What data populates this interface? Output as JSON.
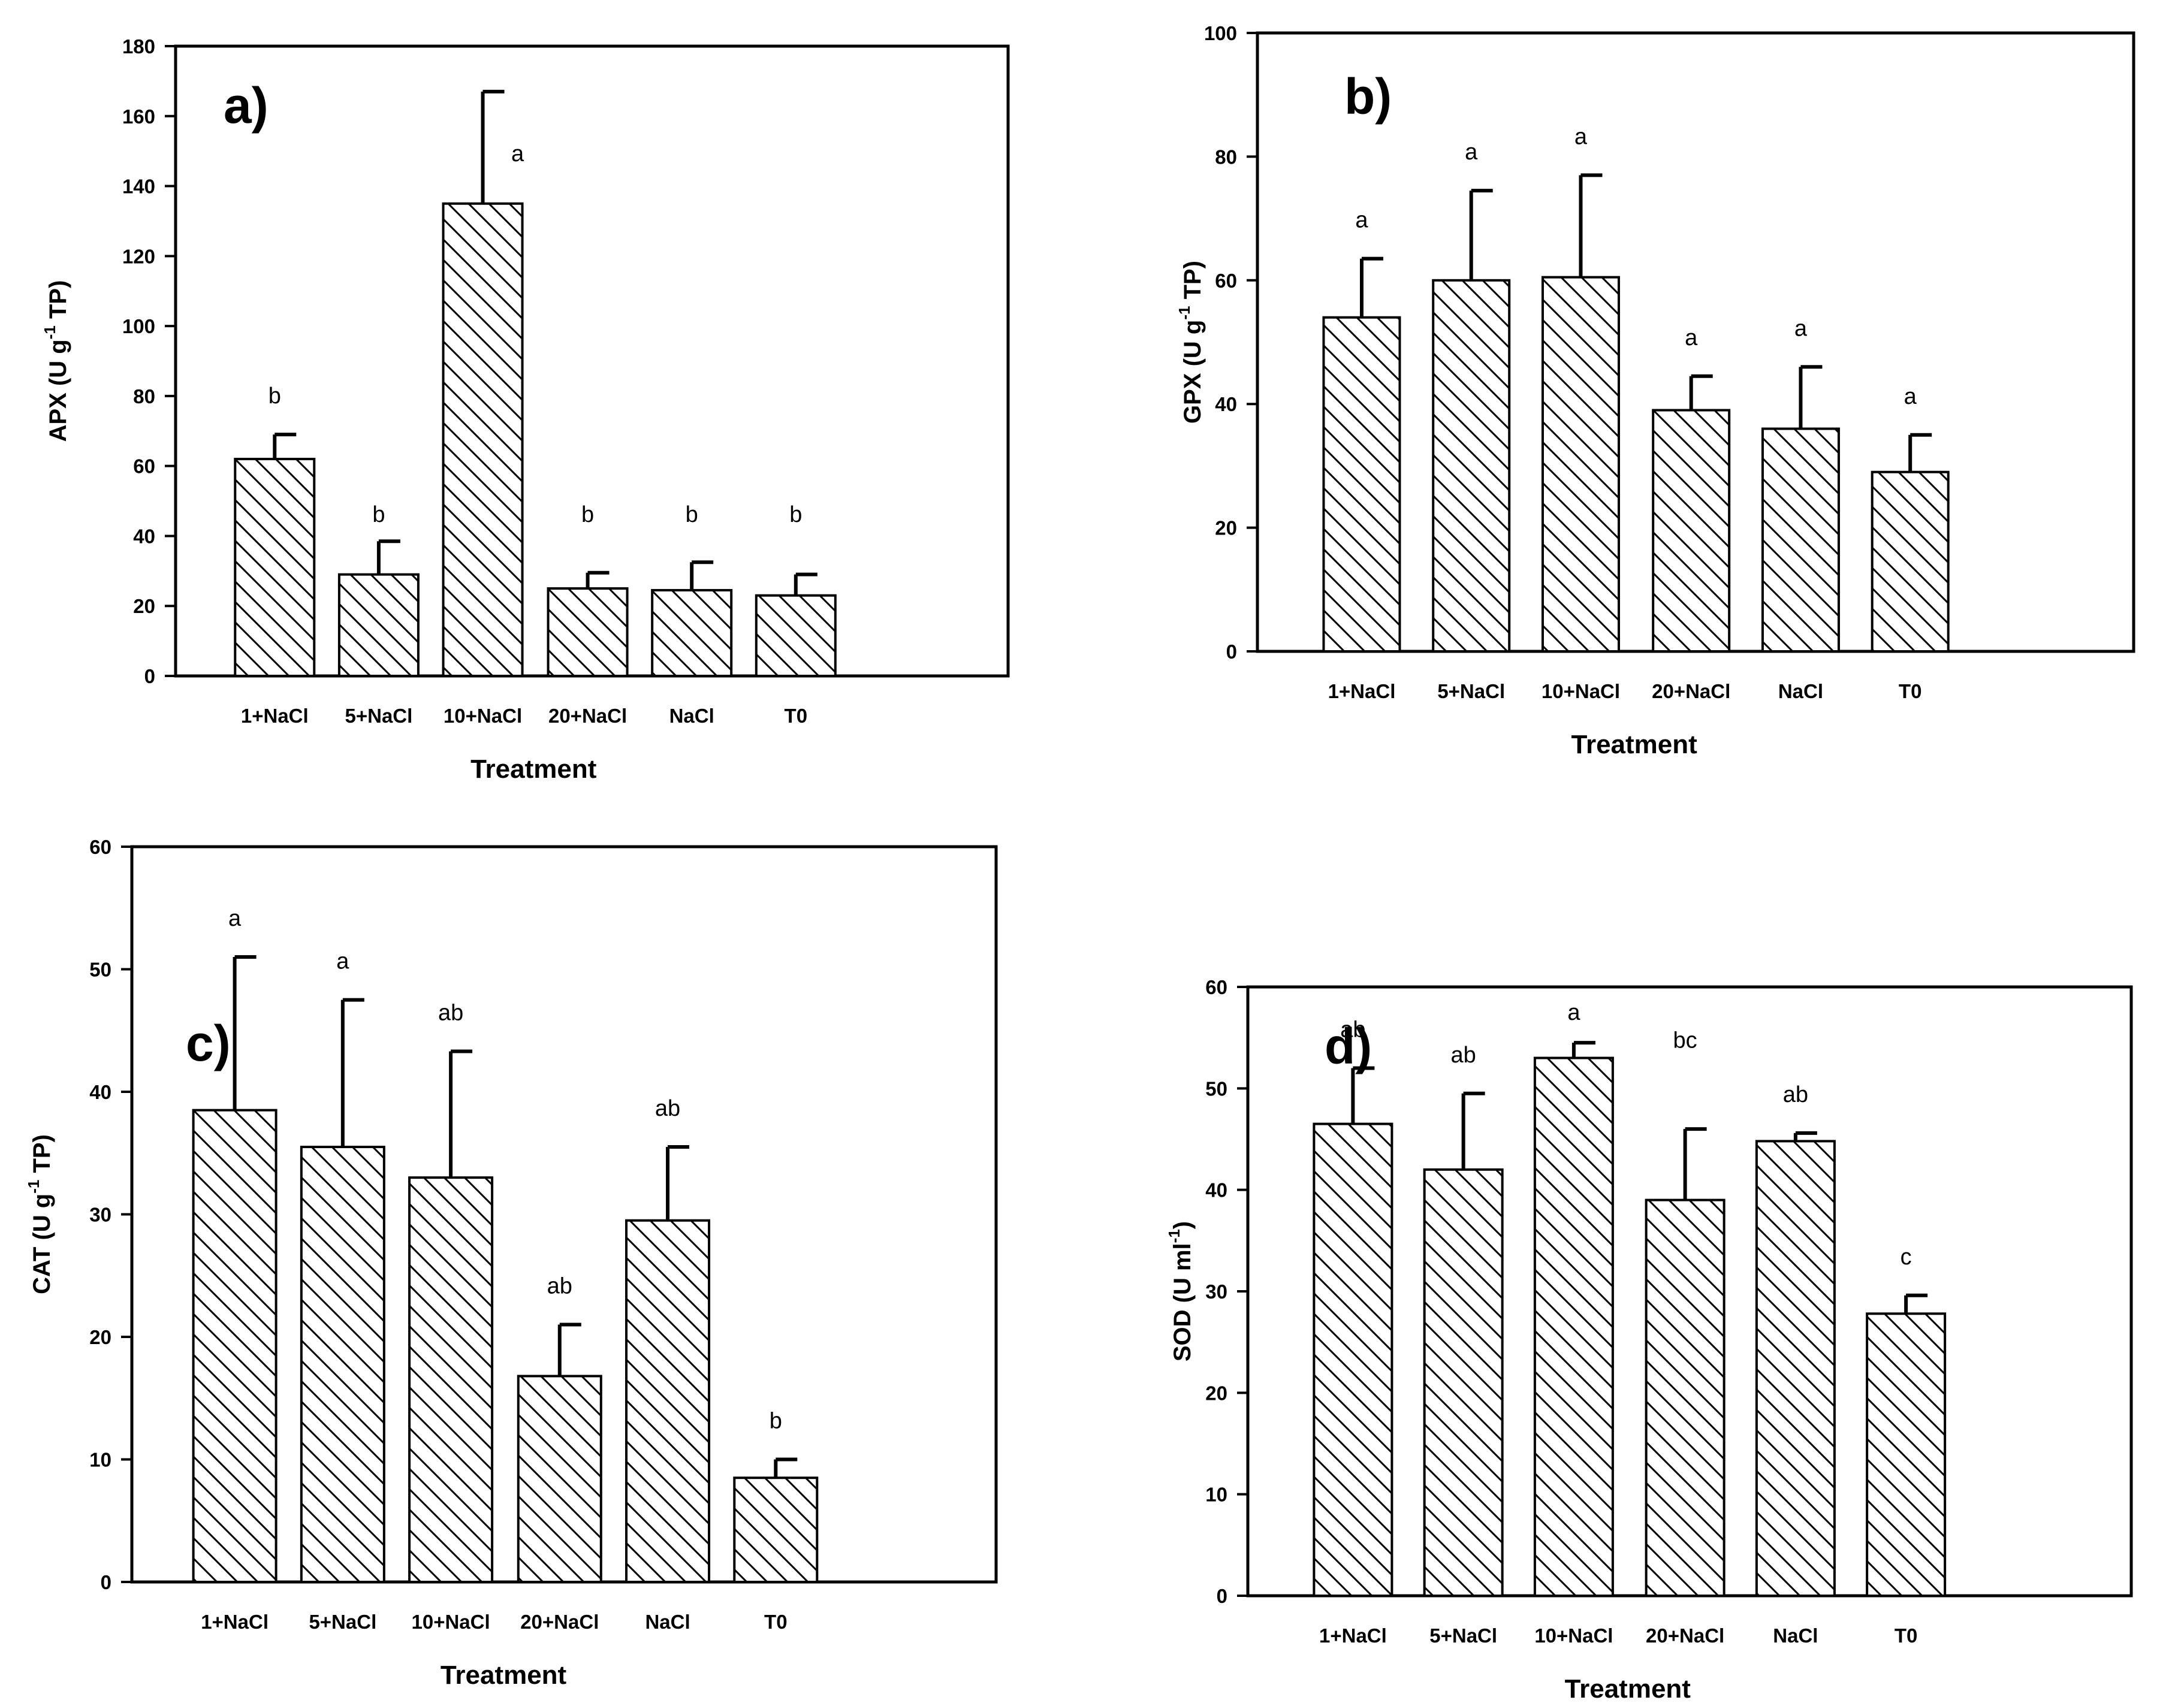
{
  "chart_data": [
    {
      "type": "bar",
      "panel_label": "a)",
      "categories": [
        "1+NaCl",
        "5+NaCl",
        "10+NaCl",
        "20+NaCl",
        "NaCl",
        "T0"
      ],
      "values": [
        62,
        29,
        135,
        25,
        24.5,
        23
      ],
      "errors": [
        7,
        9.5,
        32,
        4.5,
        8,
        6
      ],
      "letters": [
        "b",
        "b",
        "a",
        "b",
        "b",
        "b"
      ],
      "xlabel": "Treatment",
      "ylabel": {
        "base": "APX (U g",
        "sup": "-1",
        "tail": " TP)"
      },
      "ylim": [
        0,
        180
      ],
      "yticks": [
        0,
        20,
        40,
        60,
        80,
        100,
        120,
        140,
        160,
        180
      ]
    },
    {
      "type": "bar",
      "panel_label": "b)",
      "categories": [
        "1+NaCl",
        "5+NaCl",
        "10+NaCl",
        "20+NaCl",
        "NaCl",
        "T0"
      ],
      "values": [
        54,
        60,
        60.5,
        39,
        36,
        29
      ],
      "errors": [
        9.5,
        14.5,
        16.5,
        5.5,
        10,
        6
      ],
      "letters": [
        "a",
        "a",
        "a",
        "a",
        "a",
        "a"
      ],
      "xlabel": "Treatment",
      "ylabel": {
        "base": "GPX (U g",
        "sup": "-1",
        "tail": " TP)"
      },
      "ylim": [
        0,
        100
      ],
      "yticks": [
        0,
        20,
        40,
        60,
        80,
        100
      ]
    },
    {
      "type": "bar",
      "panel_label": "c)",
      "categories": [
        "1+NaCl",
        "5+NaCl",
        "10+NaCl",
        "20+NaCl",
        "NaCl",
        "T0"
      ],
      "values": [
        38.5,
        35.5,
        33,
        16.8,
        29.5,
        8.5
      ],
      "errors": [
        12.5,
        12,
        10.3,
        4.2,
        6,
        1.5
      ],
      "letters": [
        "a",
        "a",
        "ab",
        "ab",
        "ab",
        "b"
      ],
      "xlabel": "Treatment",
      "ylabel": {
        "base": "CAT (U g",
        "sup": "-1",
        "tail": " TP)"
      },
      "ylim": [
        0,
        60
      ],
      "yticks": [
        0,
        10,
        20,
        30,
        40,
        50,
        60
      ]
    },
    {
      "type": "bar",
      "panel_label": "d)",
      "categories": [
        "1+NaCl",
        "5+NaCl",
        "10+NaCl",
        "20+NaCl",
        "NaCl",
        "T0"
      ],
      "values": [
        46.5,
        42,
        53,
        39,
        44.8,
        27.8
      ],
      "errors": [
        5.5,
        7.5,
        1.5,
        7,
        0.8,
        1.8
      ],
      "letters": [
        "ab",
        "ab",
        "a",
        "bc",
        "ab",
        "c"
      ],
      "xlabel": "Treatment",
      "ylabel": {
        "base": "SOD (U ml",
        "sup": "-1",
        "tail": ")"
      },
      "ylim": [
        0,
        60
      ],
      "yticks": [
        0,
        10,
        20,
        30,
        40,
        50,
        60
      ]
    }
  ]
}
